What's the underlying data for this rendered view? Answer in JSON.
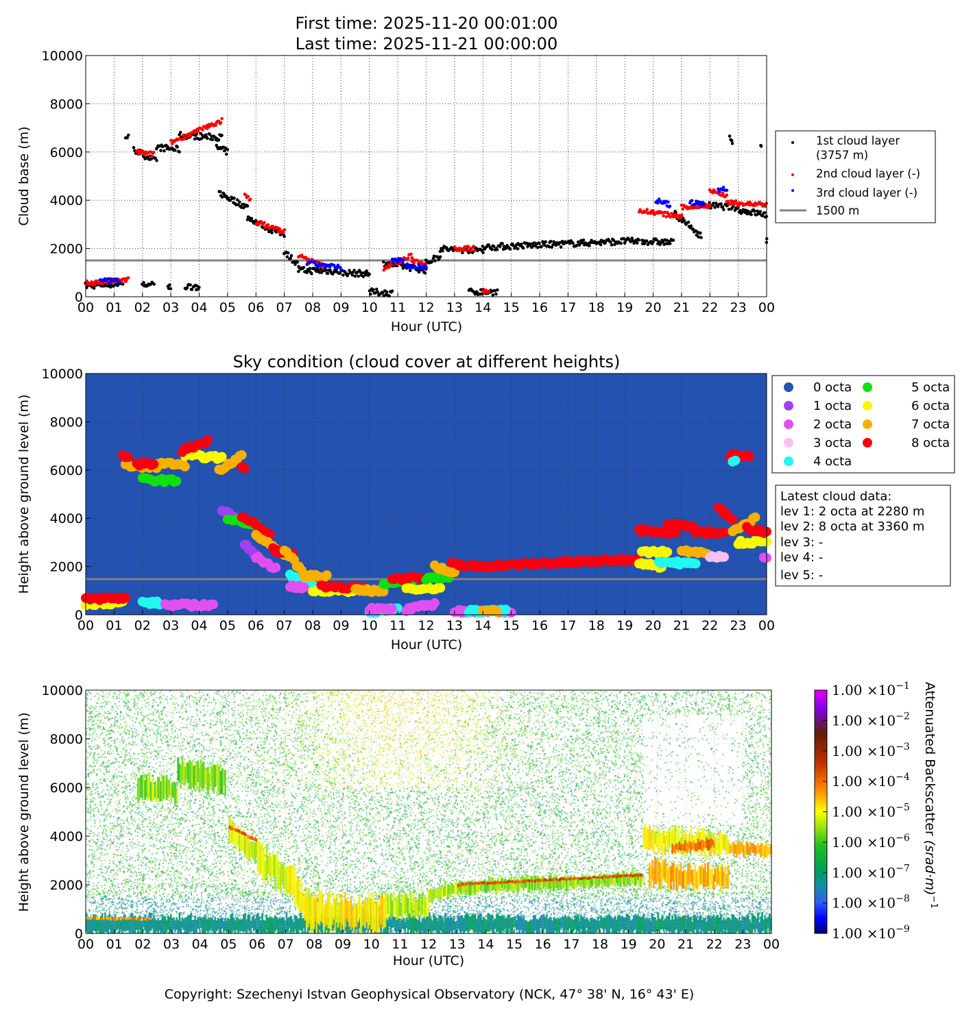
{
  "chart_data": [
    {
      "type": "scatter",
      "title": [
        "First time: 2025-11-20 00:01:00",
        "Last time: 2025-11-21 00:00:00"
      ],
      "xlabel": "Hour (UTC)",
      "ylabel": "Cloud base (m)",
      "xlim": [
        0,
        24
      ],
      "ylim": [
        0,
        10000
      ],
      "xticks": [
        "00",
        "01",
        "02",
        "03",
        "04",
        "05",
        "06",
        "07",
        "08",
        "09",
        "10",
        "11",
        "12",
        "13",
        "14",
        "15",
        "16",
        "17",
        "18",
        "19",
        "20",
        "21",
        "22",
        "23",
        "00"
      ],
      "yticks": [
        "0",
        "2000",
        "4000",
        "6000",
        "8000",
        "10000"
      ],
      "grid": true,
      "legend_position": "right",
      "legend": [
        "1st cloud layer",
        "(3757 m)",
        "2nd cloud layer (-)",
        "3rd cloud layer (-)",
        "1500 m"
      ],
      "reference_line_m": 1500,
      "series": [
        {
          "name": "1st cloud layer",
          "color": "#000000",
          "segments": [
            [
              0,
              1.3,
              450,
              550
            ],
            [
              1.4,
              1.5,
              6650,
              6600
            ],
            [
              1.7,
              2.5,
              6100,
              5600
            ],
            [
              2.5,
              3.3,
              6200,
              6100
            ],
            [
              3.3,
              4.8,
              6700,
              6600
            ],
            [
              4.6,
              5.0,
              6200,
              6000
            ],
            [
              4.7,
              5.7,
              4300,
              3700
            ],
            [
              5.7,
              6.5,
              3300,
              2800
            ],
            [
              6.5,
              7.0,
              2800,
              2600
            ],
            [
              7.0,
              7.5,
              1900,
              1300
            ],
            [
              7.5,
              9.0,
              1100,
              1050
            ],
            [
              9.0,
              10.0,
              1000,
              950
            ],
            [
              2.0,
              2.4,
              500,
              480
            ],
            [
              2.9,
              3.0,
              400,
              400
            ],
            [
              3.5,
              4.0,
              420,
              420
            ],
            [
              10.0,
              10.8,
              200,
              150
            ],
            [
              10.5,
              12.0,
              1400,
              1100
            ],
            [
              12.0,
              12.5,
              1400,
              1700
            ],
            [
              12.5,
              13.0,
              2000,
              1950
            ],
            [
              13.0,
              14.0,
              1950,
              1950
            ],
            [
              14.0,
              19.0,
              2050,
              2300
            ],
            [
              19.0,
              19.5,
              2300,
              2300
            ],
            [
              19.6,
              20.7,
              2300,
              2250
            ],
            [
              20.7,
              21.7,
              3500,
              2500
            ],
            [
              21.7,
              23.0,
              3800,
              3700
            ],
            [
              23.0,
              24.0,
              3600,
              3400
            ],
            [
              13.5,
              14.5,
              200,
              200
            ],
            [
              22.7,
              22.8,
              6600,
              6300
            ],
            [
              23.8,
              23.8,
              6150,
              6150
            ],
            [
              24,
              24,
              2300,
              2300
            ]
          ]
        },
        {
          "name": "2nd cloud layer",
          "color": "#ff0000",
          "segments": [
            [
              0,
              1.5,
              550,
              700
            ],
            [
              1.8,
              2.4,
              6000,
              5900
            ],
            [
              3.0,
              4.8,
              6400,
              7300
            ],
            [
              5.6,
              5.8,
              4200,
              4000
            ],
            [
              6.0,
              7.0,
              3100,
              2700
            ],
            [
              7.5,
              8.5,
              1700,
              1200
            ],
            [
              10.5,
              11.5,
              1200,
              1700
            ],
            [
              11.5,
              12.0,
              1500,
              1400
            ],
            [
              13.0,
              13.7,
              2000,
              2000
            ],
            [
              19.5,
              20.0,
              3600,
              3500
            ],
            [
              20.0,
              21.0,
              3500,
              3300
            ],
            [
              21.0,
              22.0,
              3700,
              3800
            ],
            [
              22.0,
              22.6,
              4400,
              4200
            ],
            [
              22.6,
              24,
              3900,
              3800
            ],
            [
              14.0,
              14.2,
              250,
              250
            ]
          ]
        },
        {
          "name": "3rd cloud layer",
          "color": "#0000ff",
          "segments": [
            [
              0.5,
              1.2,
              650,
              650
            ],
            [
              7.8,
              9.0,
              1400,
              1200
            ],
            [
              10.8,
              11.2,
              1500,
              1500
            ],
            [
              11.3,
              12.0,
              1300,
              1200
            ],
            [
              20.1,
              20.6,
              4000,
              3800
            ],
            [
              21.3,
              21.8,
              3900,
              3850
            ],
            [
              22.3,
              22.6,
              4450,
              4450
            ]
          ]
        }
      ]
    },
    {
      "type": "scatter",
      "title": "Sky condition (cloud cover at different heights)",
      "xlabel": "Hour (UTC)",
      "ylabel": "Height above ground level (m)",
      "xlim": [
        0,
        24
      ],
      "ylim": [
        0,
        10000
      ],
      "xticks": [
        "00",
        "01",
        "02",
        "03",
        "04",
        "05",
        "06",
        "07",
        "08",
        "09",
        "10",
        "11",
        "12",
        "13",
        "14",
        "15",
        "16",
        "17",
        "18",
        "19",
        "20",
        "21",
        "22",
        "23",
        "00"
      ],
      "yticks": [
        "0",
        "2000",
        "4000",
        "6000",
        "8000",
        "10000"
      ],
      "reference_line_m": 1500,
      "legend_position": "right",
      "octa_legend": [
        {
          "label": "0 octa",
          "color": "#2452b0"
        },
        {
          "label": "1 octa",
          "color": "#a040f0"
        },
        {
          "label": "2 octa",
          "color": "#e050f0"
        },
        {
          "label": "3 octa",
          "color": "#f8c0f0"
        },
        {
          "label": "4 octa",
          "color": "#20f8f0"
        },
        {
          "label": "5 octa",
          "color": "#10e010"
        },
        {
          "label": "6 octa",
          "color": "#f8f800"
        },
        {
          "label": "7 octa",
          "color": "#f8b000"
        },
        {
          "label": "8 octa",
          "color": "#f80010"
        }
      ],
      "latest": [
        "Latest cloud data:",
        "lev 1: 2 octa at 2280 m",
        "lev 2: 8 octa at 3360 m",
        "lev 3: -",
        "lev 4: -",
        "lev 5: -"
      ],
      "segments": [
        [
          0,
          1.3,
          450,
          500,
          6
        ],
        [
          0,
          1.4,
          650,
          700,
          8
        ],
        [
          1.4,
          2.5,
          6200,
          6100,
          7
        ],
        [
          1.3,
          1.5,
          6550,
          6550,
          8
        ],
        [
          2.0,
          3.2,
          5600,
          5550,
          5
        ],
        [
          2.5,
          3.5,
          6300,
          6200,
          7
        ],
        [
          1.8,
          2.4,
          6250,
          6250,
          8
        ],
        [
          3.5,
          4.8,
          6600,
          6500,
          6
        ],
        [
          3.4,
          4.3,
          6800,
          7200,
          8
        ],
        [
          4.7,
          5.5,
          6000,
          6600,
          7
        ],
        [
          5.5,
          5.6,
          6100,
          6100,
          8
        ],
        [
          2.0,
          2.6,
          500,
          480,
          4
        ],
        [
          2.8,
          4.5,
          400,
          400,
          2
        ],
        [
          4.8,
          5.3,
          4300,
          4100,
          1
        ],
        [
          5.0,
          6.0,
          4000,
          3700,
          5
        ],
        [
          5.6,
          6.0,
          2900,
          2500,
          1
        ],
        [
          5.5,
          6.5,
          4100,
          3300,
          8
        ],
        [
          6.0,
          7.0,
          3300,
          2500,
          7
        ],
        [
          6.0,
          6.7,
          2400,
          1900,
          2
        ],
        [
          6.6,
          7.3,
          2700,
          2500,
          8
        ],
        [
          7.0,
          7.7,
          2700,
          1700,
          7
        ],
        [
          7.2,
          8.0,
          1600,
          1300,
          4
        ],
        [
          7.2,
          7.7,
          1200,
          1100,
          2
        ],
        [
          7.7,
          8.5,
          1600,
          1600,
          7
        ],
        [
          8.0,
          9.5,
          1000,
          1000,
          6
        ],
        [
          8.3,
          9.8,
          1200,
          1100,
          8
        ],
        [
          9.5,
          10.5,
          1000,
          1000,
          7
        ],
        [
          10.0,
          11.0,
          100,
          300,
          4
        ],
        [
          10.0,
          10.8,
          250,
          200,
          2
        ],
        [
          11.3,
          12.3,
          200,
          450,
          2
        ],
        [
          10.5,
          11.5,
          1300,
          1400,
          5
        ],
        [
          10.8,
          12.0,
          1500,
          1500,
          8
        ],
        [
          11.3,
          12.5,
          1100,
          1100,
          6
        ],
        [
          12.0,
          12.8,
          1500,
          1600,
          5
        ],
        [
          12.3,
          13.0,
          2000,
          1700,
          7
        ],
        [
          12.9,
          13.7,
          2100,
          2000,
          8
        ],
        [
          13.7,
          19.5,
          2000,
          2300,
          8
        ],
        [
          13.0,
          15.0,
          150,
          150,
          2
        ],
        [
          13.5,
          14.8,
          150,
          150,
          4
        ],
        [
          14.0,
          14.5,
          150,
          150,
          7
        ],
        [
          19.5,
          20.3,
          2100,
          2000,
          6
        ],
        [
          19.6,
          20.5,
          2600,
          2600,
          6
        ],
        [
          19.5,
          20.8,
          3500,
          3400,
          8
        ],
        [
          20.2,
          21.5,
          2200,
          2100,
          4
        ],
        [
          20.5,
          21.5,
          3800,
          3600,
          8
        ],
        [
          21.0,
          22.0,
          2700,
          2500,
          7
        ],
        [
          21.5,
          22.5,
          3400,
          3400,
          8
        ],
        [
          22.0,
          22.5,
          2400,
          2400,
          3
        ],
        [
          22.3,
          22.8,
          4400,
          4000,
          8
        ],
        [
          22.7,
          23.4,
          6600,
          6600,
          8
        ],
        [
          22.8,
          22.9,
          6350,
          6350,
          4
        ],
        [
          22.8,
          23.6,
          3500,
          4000,
          7
        ],
        [
          23.0,
          24,
          3000,
          3000,
          6
        ],
        [
          23.3,
          24,
          3600,
          3400,
          8
        ],
        [
          23.9,
          24,
          2300,
          2300,
          2
        ]
      ]
    },
    {
      "type": "heatmap",
      "xlabel": "Hour (UTC)",
      "ylabel": "Height above ground level (m)",
      "xlim": [
        0,
        24
      ],
      "ylim": [
        0,
        10000
      ],
      "xticks": [
        "00",
        "01",
        "02",
        "03",
        "04",
        "05",
        "06",
        "07",
        "08",
        "09",
        "10",
        "11",
        "12",
        "13",
        "14",
        "15",
        "16",
        "17",
        "18",
        "19",
        "20",
        "21",
        "22",
        "23",
        "00"
      ],
      "yticks": [
        "0",
        "2000",
        "4000",
        "6000",
        "8000",
        "10000"
      ],
      "colorbar_label": "Attenuated Backscatter ",
      "colorbar_unit": "(srad·m)",
      "colorbar_unit_exp": "−1",
      "colorbar_scale": "log",
      "colorbar_range_log10": [
        -9,
        -1
      ],
      "colorbar_ticks": [
        {
          "mant": "1.00 ×10",
          "exp": "−1"
        },
        {
          "mant": "1.00 ×10",
          "exp": "−2"
        },
        {
          "mant": "1.00 ×10",
          "exp": "−3"
        },
        {
          "mant": "1.00 ×10",
          "exp": "−4"
        },
        {
          "mant": "1.00 ×10",
          "exp": "−5"
        },
        {
          "mant": "1.00 ×10",
          "exp": "−6"
        },
        {
          "mant": "1.00 ×10",
          "exp": "−7"
        },
        {
          "mant": "1.00 ×10",
          "exp": "−8"
        },
        {
          "mant": "1.00 ×10",
          "exp": "−9"
        }
      ],
      "features": [
        [
          0,
          24,
          350,
          350,
          700,
          -7.2
        ],
        [
          0,
          2.3,
          620,
          600,
          120,
          -4.3
        ],
        [
          1.8,
          3.2,
          6000,
          5800,
          900,
          -5.6
        ],
        [
          3.2,
          4.9,
          6600,
          6300,
          1000,
          -5.7
        ],
        [
          5.0,
          6.0,
          4200,
          3300,
          900,
          -5.2
        ],
        [
          5.0,
          6.0,
          4400,
          3800,
          150,
          -3.9
        ],
        [
          6.0,
          7.3,
          3000,
          2200,
          1200,
          -5.1
        ],
        [
          7.3,
          8.0,
          1800,
          600,
          1200,
          -5.0
        ],
        [
          7.7,
          10.5,
          900,
          800,
          1300,
          -4.9
        ],
        [
          10.5,
          12.0,
          1200,
          1100,
          900,
          -5.4
        ],
        [
          12.0,
          13.0,
          1500,
          1900,
          500,
          -5.3
        ],
        [
          13.0,
          19.5,
          1900,
          2250,
          500,
          -5.6
        ],
        [
          13.0,
          19.5,
          2000,
          2400,
          120,
          -3.7
        ],
        [
          19.5,
          22.5,
          3900,
          3600,
          900,
          -5.0
        ],
        [
          19.7,
          22.5,
          2500,
          2200,
          900,
          -4.5
        ],
        [
          20.5,
          22.0,
          3500,
          3700,
          400,
          -4.0
        ],
        [
          22.5,
          24,
          3500,
          3400,
          500,
          -4.5
        ]
      ]
    }
  ],
  "footer": "Copyright: Szechenyi Istvan Geophysical Observatory (NCK, 47° 38' N, 16° 43' E)"
}
